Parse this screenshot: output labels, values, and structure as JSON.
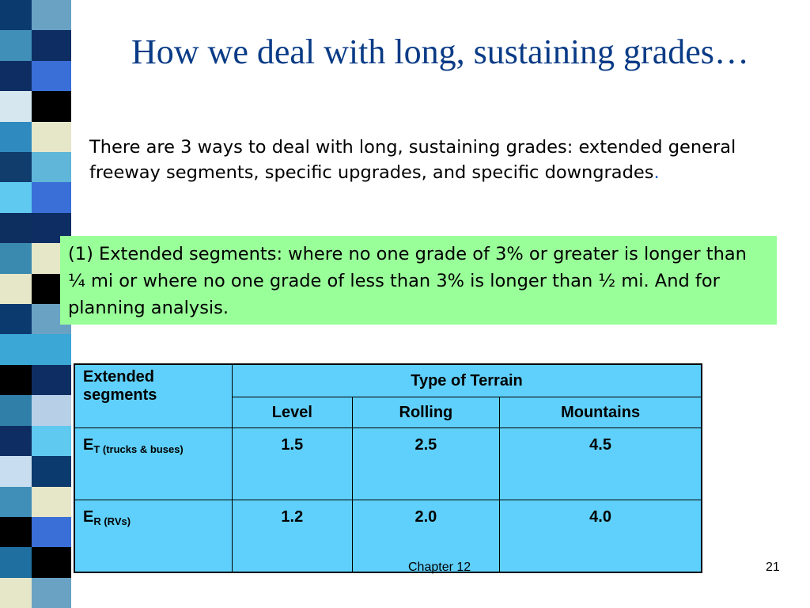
{
  "title": "How we deal with long, sustaining grades…",
  "intro": {
    "text": "There are 3 ways to deal with long, sustaining grades: extended general freeway segments, specific upgrades, and specific downgrades",
    "period": "."
  },
  "callout": {
    "text": "(1) Extended segments: where no one grade of 3% or greater is longer than ¼ mi or where no one grade of less than 3% is longer than ½ mi.  And for planning analysis."
  },
  "table": {
    "corner_label": "Extended segments",
    "group_header": "Type of Terrain",
    "columns": [
      "Level",
      "Rolling",
      "Mountains"
    ],
    "rows": [
      {
        "label_main": "E",
        "label_sub": "T (trucks & buses)",
        "values": [
          "1.5",
          "2.5",
          "4.5"
        ]
      },
      {
        "label_main": "E",
        "label_sub": "R (RVs)",
        "values": [
          "1.2",
          "2.0",
          "4.0"
        ]
      }
    ]
  },
  "footer": {
    "chapter": "Chapter 12",
    "page": "21"
  },
  "colors": {
    "title": "#0a3b86",
    "callout_bg": "#99ff99",
    "table_bg": "#5fd0fb"
  }
}
